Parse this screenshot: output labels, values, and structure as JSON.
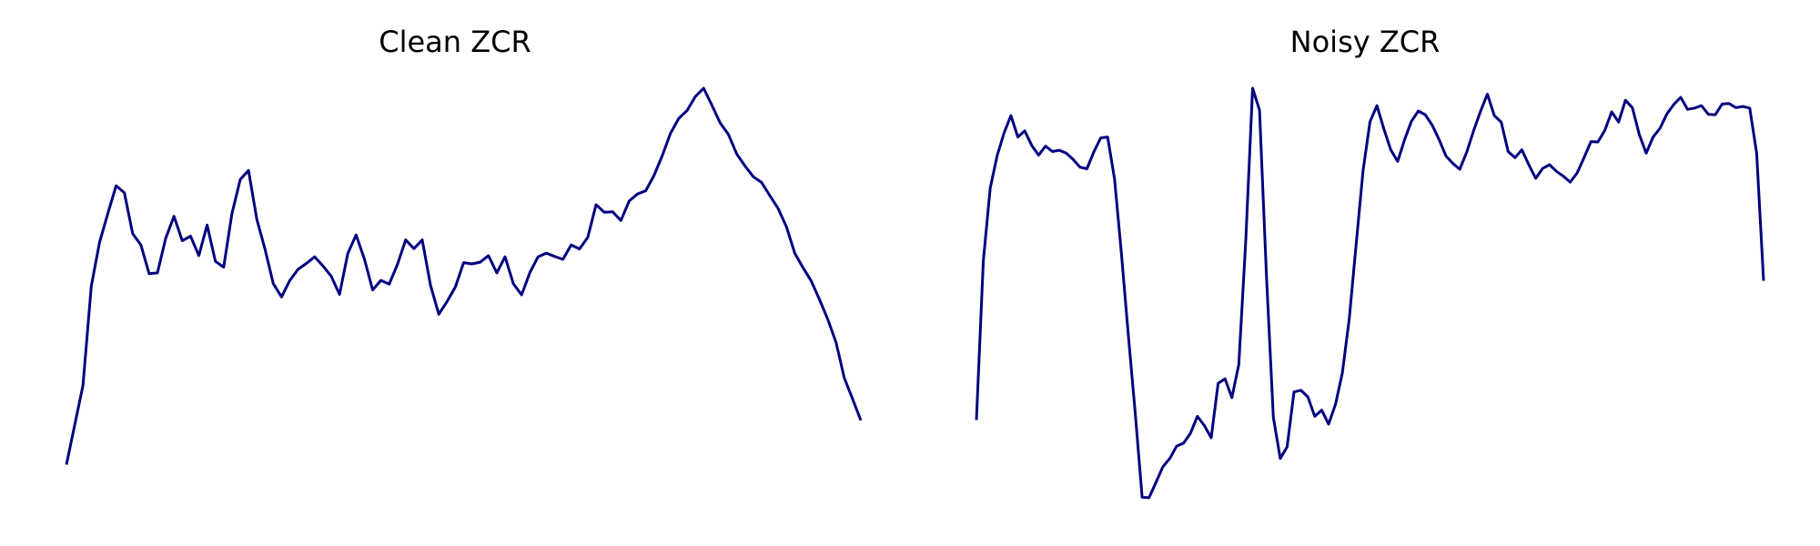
{
  "chart_data": [
    {
      "type": "line",
      "title": "Clean ZCR",
      "xlabel": "",
      "ylabel": "",
      "axes_visible": false,
      "grid": false,
      "ylim": [
        0,
        1
      ],
      "series": [
        {
          "color": "#000080",
          "values": [
            0.089,
            0.185,
            0.281,
            0.521,
            0.627,
            0.697,
            0.764,
            0.747,
            0.648,
            0.621,
            0.551,
            0.553,
            0.637,
            0.69,
            0.631,
            0.642,
            0.595,
            0.669,
            0.581,
            0.567,
            0.697,
            0.779,
            0.801,
            0.683,
            0.61,
            0.527,
            0.495,
            0.535,
            0.562,
            0.576,
            0.592,
            0.57,
            0.545,
            0.501,
            0.6,
            0.645,
            0.587,
            0.512,
            0.535,
            0.526,
            0.574,
            0.633,
            0.612,
            0.633,
            0.523,
            0.453,
            0.484,
            0.519,
            0.578,
            0.575,
            0.579,
            0.595,
            0.553,
            0.592,
            0.527,
            0.5,
            0.554,
            0.592,
            0.601,
            0.593,
            0.586,
            0.621,
            0.611,
            0.639,
            0.718,
            0.7,
            0.701,
            0.68,
            0.727,
            0.744,
            0.752,
            0.789,
            0.837,
            0.891,
            0.927,
            0.946,
            0.98,
            1.0,
            0.959,
            0.916,
            0.888,
            0.841,
            0.812,
            0.786,
            0.772,
            0.74,
            0.709,
            0.665,
            0.601,
            0.566,
            0.534,
            0.489,
            0.441,
            0.385,
            0.299,
            0.248,
            0.196
          ]
        }
      ]
    },
    {
      "type": "line",
      "title": "Noisy ZCR",
      "xlabel": "",
      "ylabel": "",
      "axes_visible": false,
      "grid": false,
      "ylim": [
        0,
        1
      ],
      "series": [
        {
          "color": "#000080",
          "values": [
            0.197,
            0.583,
            0.759,
            0.837,
            0.892,
            0.934,
            0.882,
            0.897,
            0.862,
            0.838,
            0.86,
            0.847,
            0.85,
            0.843,
            0.828,
            0.809,
            0.805,
            0.846,
            0.88,
            0.882,
            0.78,
            0.601,
            0.403,
            0.214,
            0.01,
            0.009,
            0.046,
            0.084,
            0.104,
            0.134,
            0.141,
            0.165,
            0.206,
            0.184,
            0.154,
            0.286,
            0.297,
            0.251,
            0.331,
            0.628,
            1.0,
            0.947,
            0.547,
            0.203,
            0.104,
            0.132,
            0.265,
            0.269,
            0.253,
            0.206,
            0.221,
            0.187,
            0.235,
            0.311,
            0.442,
            0.623,
            0.801,
            0.919,
            0.958,
            0.902,
            0.851,
            0.823,
            0.875,
            0.92,
            0.945,
            0.936,
            0.911,
            0.876,
            0.836,
            0.818,
            0.804,
            0.845,
            0.897,
            0.944,
            0.986,
            0.934,
            0.918,
            0.847,
            0.832,
            0.851,
            0.815,
            0.782,
            0.806,
            0.815,
            0.799,
            0.787,
            0.773,
            0.795,
            0.832,
            0.871,
            0.87,
            0.898,
            0.943,
            0.918,
            0.971,
            0.953,
            0.888,
            0.843,
            0.882,
            0.903,
            0.938,
            0.961,
            0.978,
            0.949,
            0.952,
            0.958,
            0.937,
            0.936,
            0.962,
            0.963,
            0.953,
            0.956,
            0.952,
            0.843,
            0.534
          ]
        }
      ]
    }
  ]
}
